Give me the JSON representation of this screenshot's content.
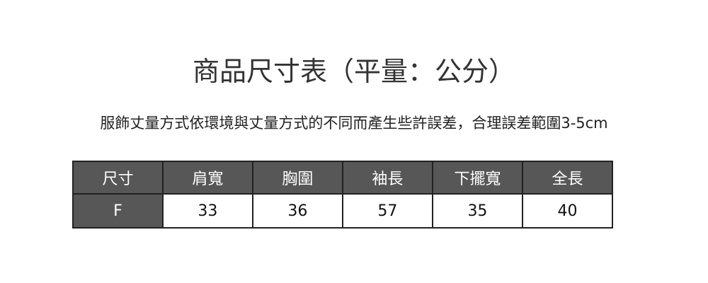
{
  "title": "商品尺寸表（平量：公分）",
  "note": "服飾丈量方式依環境與丈量方式的不同而產生些許誤差，合理誤差範圍3-5cm",
  "table": {
    "headers": [
      "尺寸",
      "肩寬",
      "胸圍",
      "袖長",
      "下擺寬",
      "全長"
    ],
    "rows": [
      [
        "F",
        "33",
        "36",
        "57",
        "35",
        "40"
      ]
    ]
  },
  "colors": {
    "header_bg": "#575757",
    "border": "#222222"
  }
}
